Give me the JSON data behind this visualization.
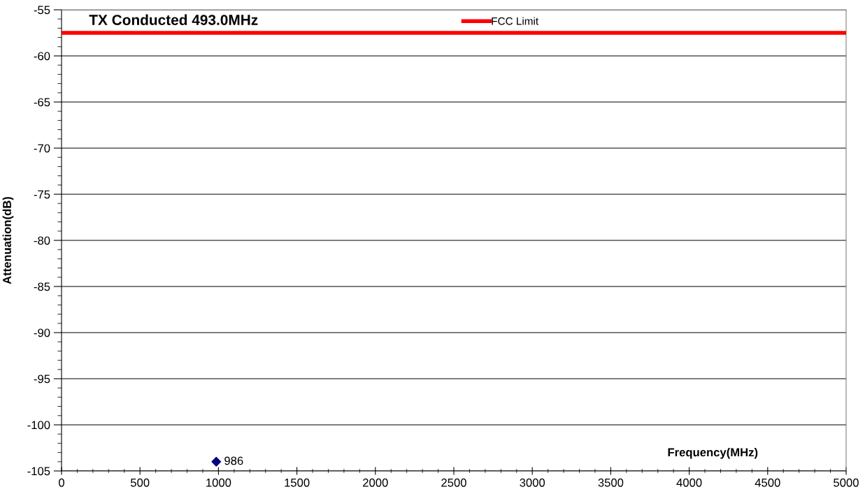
{
  "chart_data": {
    "type": "scatter",
    "title": "TX Conducted 493.0MHz",
    "xlabel": "Frequency(MHz)",
    "ylabel": "Attenuation(dB)",
    "xlim": [
      0,
      5000
    ],
    "xticks": [
      0,
      500,
      1000,
      1500,
      2000,
      2500,
      3000,
      3500,
      4000,
      4500,
      5000
    ],
    "ylim": [
      -105,
      -55
    ],
    "yticks": [
      -105,
      -100,
      -95,
      -90,
      -85,
      -80,
      -75,
      -70,
      -65,
      -60,
      -55
    ],
    "grid": "y",
    "legend": "top",
    "series": [
      {
        "name": "FCC Limit",
        "type": "line",
        "color": "#ff0000",
        "x": [
          0,
          5000
        ],
        "values": [
          -57.5,
          -57.5
        ],
        "marker": "none",
        "line_style": "solid"
      },
      {
        "color": "#000080",
        "x": [
          986
        ],
        "values": [
          -104
        ],
        "marker": "diamond"
      }
    ],
    "annotations": [
      {
        "text": "986",
        "x": 986,
        "y": -104
      }
    ]
  }
}
